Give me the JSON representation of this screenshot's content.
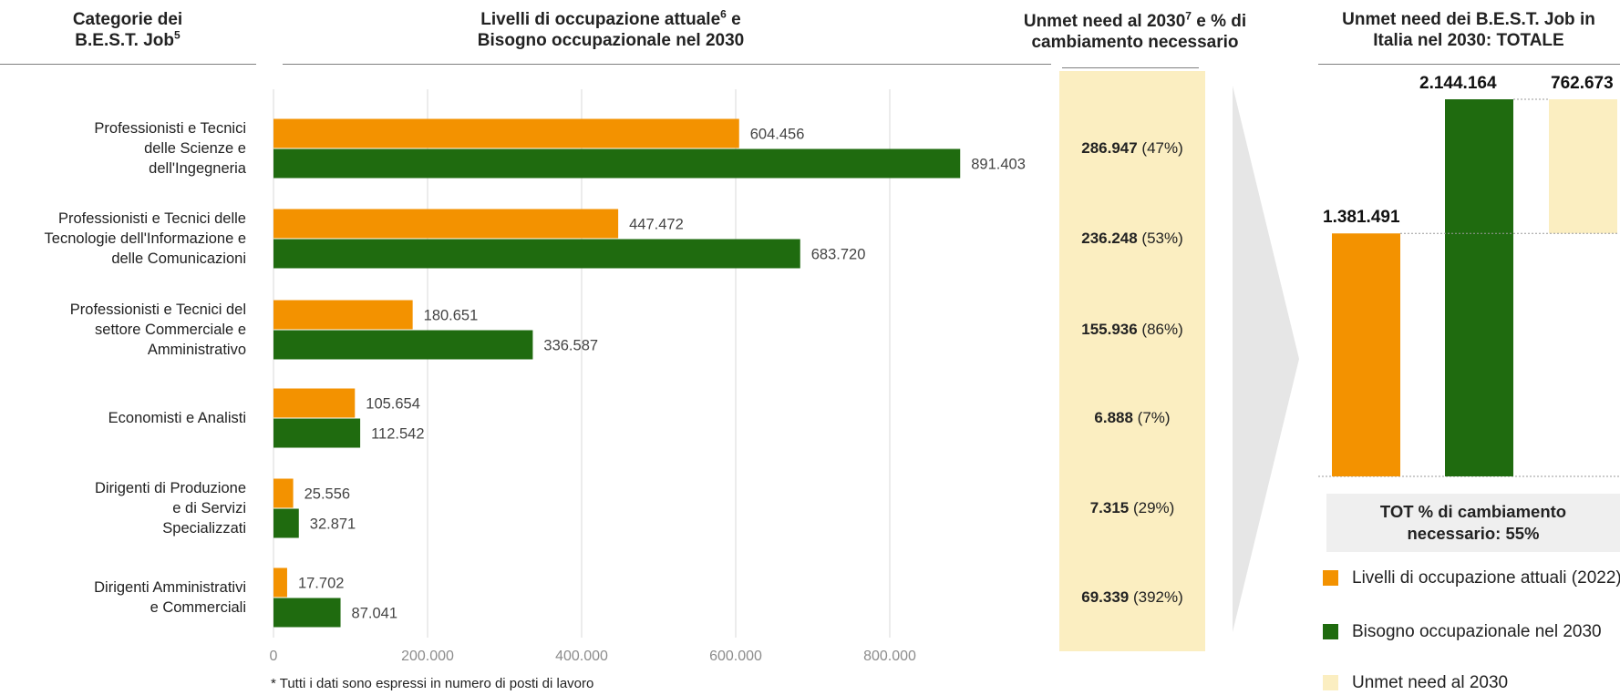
{
  "headers": {
    "categories_line1": "Categorie dei",
    "categories_line2": "B.E.S.T. Job",
    "categories_sup": "5",
    "levels_line1": "Livelli di occupazione attuale",
    "levels_sup": "6",
    "levels_line1_end": " e",
    "levels_line2": "Bisogno occupazionale nel 2030",
    "unmet_line1": "Unmet need al 2030",
    "unmet_sup": "7",
    "unmet_line1_end": " e % di",
    "unmet_line2": "cambiamento necessario",
    "total_line1": "Unmet need dei B.E.S.T. Job in",
    "total_line2": "Italia nel 2030: TOTALE"
  },
  "colors": {
    "current": "#f39200",
    "need2030": "#1f6b0f",
    "unmet": "#fbeec1",
    "grid": "#d9d9d9"
  },
  "chart_data": [
    {
      "type": "bar",
      "orientation": "horizontal",
      "categories": [
        [
          "Professionisti e Tecnici",
          "delle Scienze e",
          "dell'Ingegneria"
        ],
        [
          "Professionisti e Tecnici delle",
          "Tecnologie dell'Informazione e",
          "delle Comunicazioni"
        ],
        [
          "Professionisti e Tecnici del",
          "settore Commerciale e",
          "Amministrativo"
        ],
        [
          "Economisti e Analisti"
        ],
        [
          "Dirigenti di Produzione",
          "e di Servizi",
          "Specializzati"
        ],
        [
          "Dirigenti Amministrativi",
          "e Commerciali"
        ]
      ],
      "series": [
        {
          "name": "Livelli di occupazione attuali (2022)",
          "values": [
            604456,
            447472,
            180651,
            105654,
            25556,
            17702
          ],
          "labels": [
            "604.456",
            "447.472",
            "180.651",
            "105.654",
            "25.556",
            "17.702"
          ]
        },
        {
          "name": "Bisogno occupazionale nel 2030",
          "values": [
            891403,
            683720,
            336587,
            112542,
            32871,
            87041
          ],
          "labels": [
            "891.403",
            "683.720",
            "336.587",
            "112.542",
            "32.871",
            "87.041"
          ]
        }
      ],
      "xlim": [
        0,
        1000000
      ],
      "xticks": [
        0,
        200000,
        400000,
        600000,
        800000
      ],
      "xtick_labels": [
        "0",
        "200.000",
        "400.000",
        "600.000",
        "800.000"
      ],
      "grid": true
    },
    {
      "type": "table",
      "rows": [
        {
          "value": "286.947",
          "pct": "(47%)"
        },
        {
          "value": "236.248",
          "pct": "(53%)"
        },
        {
          "value": "155.936",
          "pct": "(86%)"
        },
        {
          "value": "6.888",
          "pct": "(7%)"
        },
        {
          "value": "7.315",
          "pct": "(29%)"
        },
        {
          "value": "69.339",
          "pct": "(392%)"
        }
      ]
    },
    {
      "type": "bar",
      "subtype": "waterfall",
      "values": [
        1381491,
        2144164,
        762673
      ],
      "labels": [
        "1.381.491",
        "2.144.164",
        "762.673"
      ],
      "ylim": [
        0,
        2144164
      ]
    }
  ],
  "total_box": {
    "line1": "TOT % di cambiamento",
    "line2": "necessario: 55%"
  },
  "legend": [
    {
      "label": "Livelli di occupazione attuali (2022)"
    },
    {
      "label": "Bisogno occupazionale nel 2030"
    },
    {
      "label": "Unmet need al 2030"
    }
  ],
  "footnote": "* Tutti i dati sono espressi in numero di posti di lavoro"
}
